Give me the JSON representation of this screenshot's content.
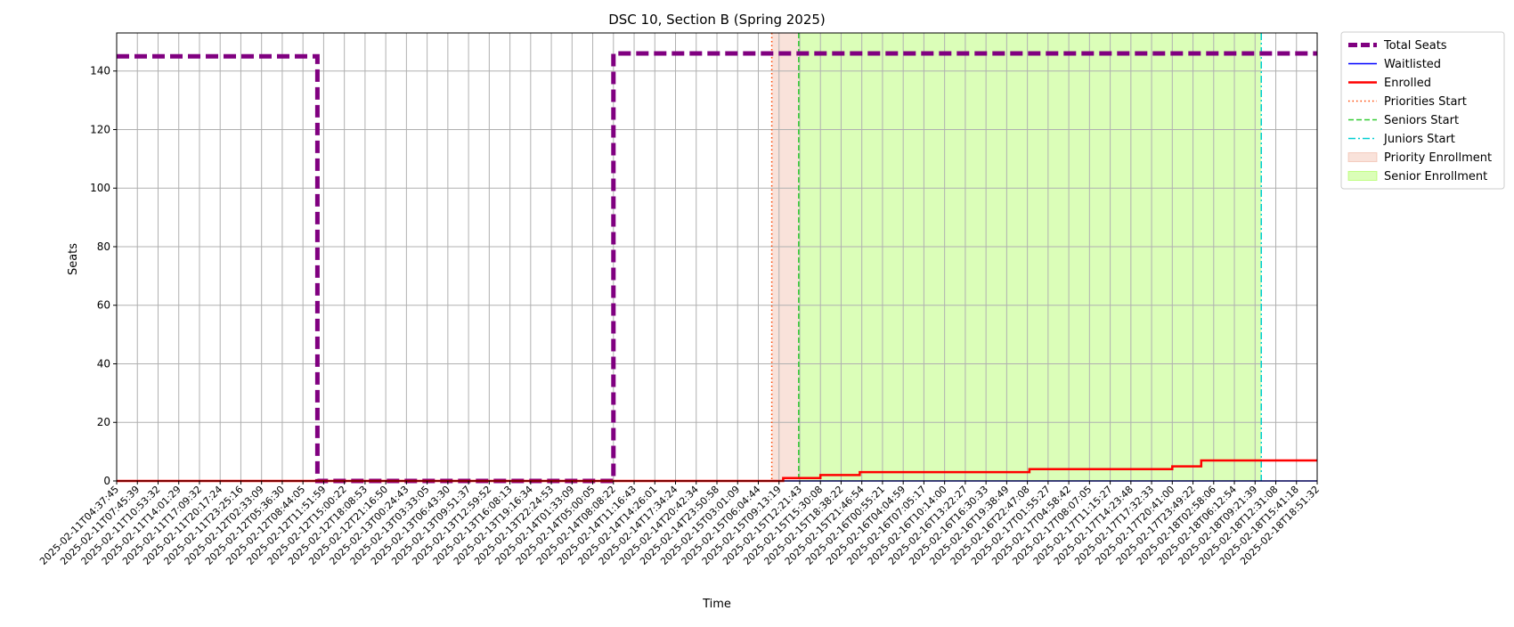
{
  "chart_data": {
    "type": "line",
    "title": "DSC 10, Section B (Spring 2025)",
    "xlabel": "Time",
    "ylabel": "Seats",
    "ylim": [
      0,
      153
    ],
    "yticks": [
      0,
      20,
      40,
      60,
      80,
      100,
      120,
      140
    ],
    "grid": true,
    "legend_position": "outside-top-right",
    "x_ticks": [
      "2025-02-11T04:37:45",
      "2025-02-11T07:45:39",
      "2025-02-11T10:53:32",
      "2025-02-11T14:01:29",
      "2025-02-11T17:09:32",
      "2025-02-11T20:17:24",
      "2025-02-11T23:25:16",
      "2025-02-12T02:33:09",
      "2025-02-12T05:36:30",
      "2025-02-12T08:44:05",
      "2025-02-12T11:51:59",
      "2025-02-12T15:00:22",
      "2025-02-12T18:08:53",
      "2025-02-12T21:16:50",
      "2025-02-13T00:24:43",
      "2025-02-13T03:33:05",
      "2025-02-13T06:43:30",
      "2025-02-13T09:51:37",
      "2025-02-13T12:59:52",
      "2025-02-13T16:08:13",
      "2025-02-13T19:16:34",
      "2025-02-13T22:24:53",
      "2025-02-14T01:33:09",
      "2025-02-14T05:00:05",
      "2025-02-14T08:08:22",
      "2025-02-14T11:16:43",
      "2025-02-14T14:26:01",
      "2025-02-14T17:34:24",
      "2025-02-14T20:42:34",
      "2025-02-14T23:50:58",
      "2025-02-15T03:01:09",
      "2025-02-15T06:04:44",
      "2025-02-15T09:13:19",
      "2025-02-15T12:21:43",
      "2025-02-15T15:30:08",
      "2025-02-15T18:38:22",
      "2025-02-15T21:46:54",
      "2025-02-16T00:55:21",
      "2025-02-16T04:04:59",
      "2025-02-16T07:05:17",
      "2025-02-16T10:14:00",
      "2025-02-16T13:22:27",
      "2025-02-16T16:30:33",
      "2025-02-16T19:38:49",
      "2025-02-16T22:47:08",
      "2025-02-17T01:55:27",
      "2025-02-17T04:58:42",
      "2025-02-17T08:07:05",
      "2025-02-17T11:15:27",
      "2025-02-17T14:23:48",
      "2025-02-17T17:32:33",
      "2025-02-17T20:41:00",
      "2025-02-17T23:49:22",
      "2025-02-18T02:58:06",
      "2025-02-18T06:12:54",
      "2025-02-18T09:21:39",
      "2025-02-18T12:31:08",
      "2025-02-18T15:41:18",
      "2025-02-18T18:51:32"
    ],
    "series": [
      {
        "name": "Total Seats",
        "color": "#800080",
        "style": "dashed",
        "points": [
          [
            0,
            145
          ],
          [
            9.7,
            145
          ],
          [
            9.7,
            0
          ],
          [
            24,
            0
          ],
          [
            24,
            146
          ],
          [
            58,
            146
          ]
        ]
      },
      {
        "name": "Waitlisted",
        "color": "#0000ff",
        "style": "solid",
        "points": [
          [
            0,
            0
          ],
          [
            58,
            0
          ]
        ]
      },
      {
        "name": "Enrolled",
        "color": "#ff0000",
        "style": "solid",
        "points": [
          [
            0,
            0
          ],
          [
            32.2,
            0
          ],
          [
            32.2,
            1
          ],
          [
            34.0,
            1
          ],
          [
            34.0,
            2
          ],
          [
            35.9,
            2
          ],
          [
            35.9,
            3
          ],
          [
            44.1,
            3
          ],
          [
            44.1,
            4
          ],
          [
            51.0,
            4
          ],
          [
            51.0,
            5
          ],
          [
            52.4,
            5
          ],
          [
            52.4,
            7
          ],
          [
            58,
            7
          ]
        ]
      }
    ],
    "markers": [
      {
        "name": "Priorities Start",
        "x": 31.65,
        "color": "#ff4500",
        "style": "dotted"
      },
      {
        "name": "Seniors Start",
        "x": 32.95,
        "color": "#32cd32",
        "style": "dashed"
      },
      {
        "name": "Juniors Start",
        "x": 55.3,
        "color": "#00ced1",
        "style": "dashdot"
      }
    ],
    "spans": [
      {
        "name": "Priority Enrollment",
        "x0": 31.65,
        "x1": 32.95,
        "color": "#e9967a"
      },
      {
        "name": "Senior Enrollment",
        "x0": 32.95,
        "x1": 55.3,
        "color": "#7cfc00"
      }
    ],
    "legend": [
      {
        "label": "Total Seats",
        "kind": "line",
        "color": "#800080",
        "style": "dashed"
      },
      {
        "label": "Waitlisted",
        "kind": "line",
        "color": "#0000ff",
        "style": "solid"
      },
      {
        "label": "Enrolled",
        "kind": "line",
        "color": "#ff0000",
        "style": "solid"
      },
      {
        "label": "Priorities Start",
        "kind": "line",
        "color": "#ff4500",
        "style": "dotted"
      },
      {
        "label": "Seniors Start",
        "kind": "line",
        "color": "#32cd32",
        "style": "dashed"
      },
      {
        "label": "Juniors Start",
        "kind": "line",
        "color": "#00ced1",
        "style": "dashdot"
      },
      {
        "label": "Priority Enrollment",
        "kind": "patch",
        "color": "#e9967a"
      },
      {
        "label": "Senior Enrollment",
        "kind": "patch",
        "color": "#7cfc00"
      }
    ]
  }
}
